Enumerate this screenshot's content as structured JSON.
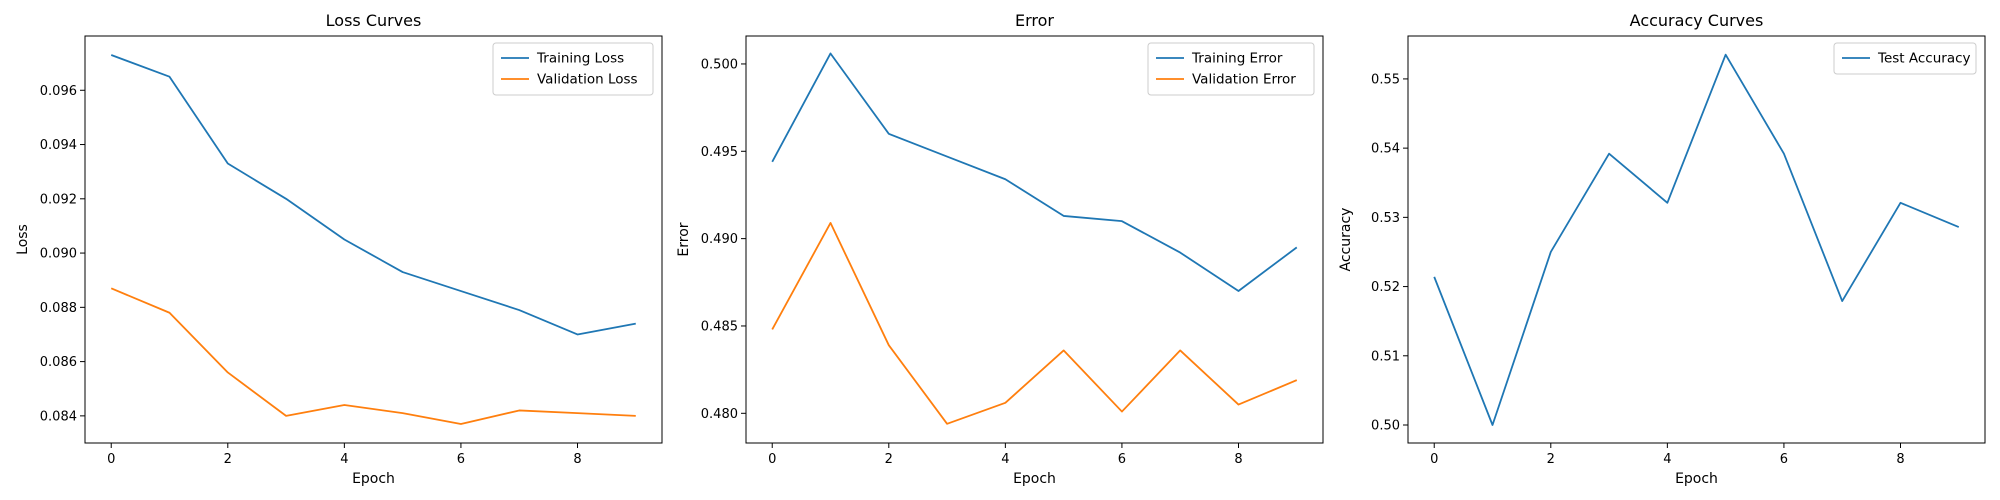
{
  "chart_data": [
    {
      "type": "line",
      "title": "Loss Curves",
      "xlabel": "Epoch",
      "ylabel": "Loss",
      "xlim": [
        -0.45,
        9.45
      ],
      "ylim": [
        0.083,
        0.098
      ],
      "xticks": [
        0,
        2,
        4,
        6,
        8
      ],
      "yticks": [
        0.084,
        0.086,
        0.088,
        0.09,
        0.092,
        0.094,
        0.096
      ],
      "ytick_labels": [
        "0.084",
        "0.086",
        "0.088",
        "0.090",
        "0.092",
        "0.094",
        "0.096"
      ],
      "legend": "top-right",
      "x": [
        0,
        1,
        2,
        3,
        4,
        5,
        6,
        7,
        8,
        9
      ],
      "series": [
        {
          "name": "Training Loss",
          "color": "#1f77b4",
          "values": [
            0.0973,
            0.0965,
            0.0933,
            0.092,
            0.0905,
            0.0893,
            0.0886,
            0.0879,
            0.087,
            0.0874
          ]
        },
        {
          "name": "Validation Loss",
          "color": "#ff7f0e",
          "values": [
            0.0887,
            0.0878,
            0.0856,
            0.084,
            0.0844,
            0.0841,
            0.0837,
            0.0842,
            0.0841,
            0.084
          ]
        }
      ]
    },
    {
      "type": "line",
      "title": "Error",
      "xlabel": "Epoch",
      "ylabel": "Error",
      "xlim": [
        -0.45,
        9.45
      ],
      "ylim": [
        0.4783,
        0.5016
      ],
      "xticks": [
        0,
        2,
        4,
        6,
        8
      ],
      "yticks": [
        0.48,
        0.485,
        0.49,
        0.495,
        0.5
      ],
      "ytick_labels": [
        "0.480",
        "0.485",
        "0.490",
        "0.495",
        "0.500"
      ],
      "legend": "top-right",
      "x": [
        0,
        1,
        2,
        3,
        4,
        5,
        6,
        7,
        8,
        9
      ],
      "series": [
        {
          "name": "Training Error",
          "color": "#1f77b4",
          "values": [
            0.4944,
            0.5006,
            0.496,
            0.4947,
            0.4934,
            0.4913,
            0.491,
            0.4892,
            0.487,
            0.4895
          ]
        },
        {
          "name": "Validation Error",
          "color": "#ff7f0e",
          "values": [
            0.4848,
            0.4909,
            0.4839,
            0.4794,
            0.4806,
            0.4836,
            0.4801,
            0.4836,
            0.4805,
            0.4819
          ]
        }
      ]
    },
    {
      "type": "line",
      "title": "Accuracy Curves",
      "xlabel": "Epoch",
      "ylabel": "Accuracy",
      "xlim": [
        -0.45,
        9.45
      ],
      "ylim": [
        0.4974,
        0.5562
      ],
      "xticks": [
        0,
        2,
        4,
        6,
        8
      ],
      "yticks": [
        0.5,
        0.51,
        0.52,
        0.53,
        0.54,
        0.55
      ],
      "ytick_labels": [
        "0.50",
        "0.51",
        "0.52",
        "0.53",
        "0.54",
        "0.55"
      ],
      "legend": "top-right",
      "x": [
        0,
        1,
        2,
        3,
        4,
        5,
        6,
        7,
        8,
        9
      ],
      "series": [
        {
          "name": "Test Accuracy",
          "color": "#1f77b4",
          "values": [
            0.5214,
            0.5,
            0.525,
            0.5392,
            0.5321,
            0.5535,
            0.5392,
            0.5179,
            0.5321,
            0.5286
          ]
        }
      ]
    }
  ]
}
